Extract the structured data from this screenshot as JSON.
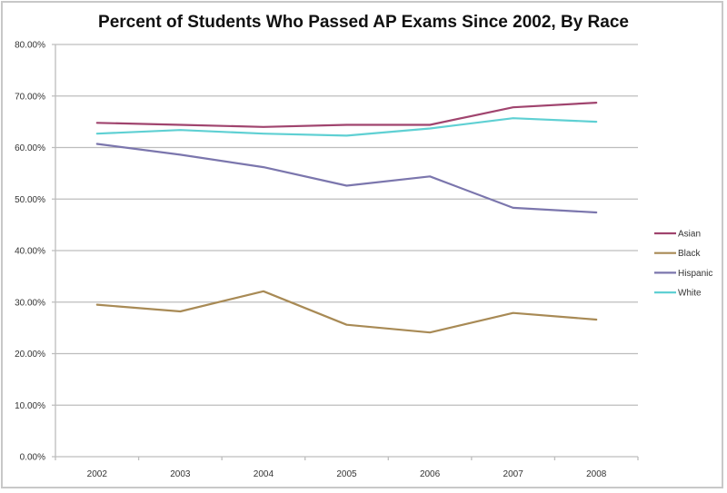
{
  "chart_data": {
    "type": "line",
    "title": "Percent of Students Who Passed AP Exams Since 2002, By Race",
    "xlabel": "",
    "ylabel": "",
    "categories": [
      "2002",
      "2003",
      "2004",
      "2005",
      "2006",
      "2007",
      "2008"
    ],
    "ylim": [
      0,
      80
    ],
    "yticks": [
      0,
      10,
      20,
      30,
      40,
      50,
      60,
      70,
      80
    ],
    "ytick_labels": [
      "0.00%",
      "10.00%",
      "20.00%",
      "30.00%",
      "40.00%",
      "50.00%",
      "60.00%",
      "70.00%",
      "80.00%"
    ],
    "grid": true,
    "legend_position": "right",
    "series": [
      {
        "name": "Asian",
        "color": "#a0446e",
        "values": [
          64.8,
          64.4,
          64.0,
          64.4,
          64.4,
          67.8,
          68.7
        ]
      },
      {
        "name": "Black",
        "color": "#a88a55",
        "values": [
          29.5,
          28.2,
          32.1,
          25.6,
          24.1,
          27.9,
          26.6
        ]
      },
      {
        "name": "Hispanic",
        "color": "#7b76ad",
        "values": [
          60.7,
          58.6,
          56.2,
          52.6,
          54.4,
          48.3,
          47.4
        ]
      },
      {
        "name": "White",
        "color": "#5fd0d3",
        "values": [
          62.7,
          63.4,
          62.7,
          62.3,
          63.7,
          65.7,
          65.0
        ]
      }
    ]
  }
}
